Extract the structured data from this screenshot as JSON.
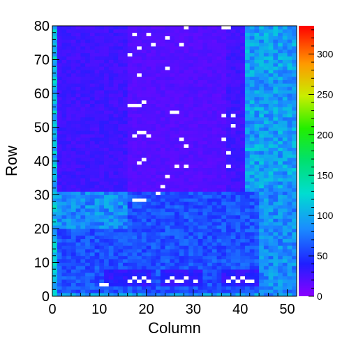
{
  "chart_data": {
    "type": "heatmap",
    "title": "",
    "xlabel": "Column",
    "ylabel": "Row",
    "xlim": [
      0,
      52
    ],
    "ylim": [
      0,
      80
    ],
    "x_ticks": [
      "0",
      "10",
      "20",
      "30",
      "40",
      "50"
    ],
    "y_ticks": [
      "0",
      "10",
      "20",
      "30",
      "40",
      "50",
      "60",
      "70",
      "80"
    ],
    "colorbar": {
      "range": [
        0,
        335
      ],
      "ticks": [
        "0",
        "50",
        "100",
        "150",
        "200",
        "250",
        "300"
      ]
    },
    "grid": false,
    "legend": "none",
    "n_columns": 52,
    "n_rows": 80,
    "region_values": {
      "rows_31_to_80_left_cols_0_40": 28,
      "rows_31_to_80_middle_cols_16_36": 20,
      "rows_31_to_80_right_cols_41_51": 95,
      "rows_0_to_30_main": 60,
      "rows_20_to_30_left_cols_1_15": 85,
      "bottom_pads_rows_4_7": 35,
      "border_column_0": 110,
      "white_cells": 0
    }
  }
}
